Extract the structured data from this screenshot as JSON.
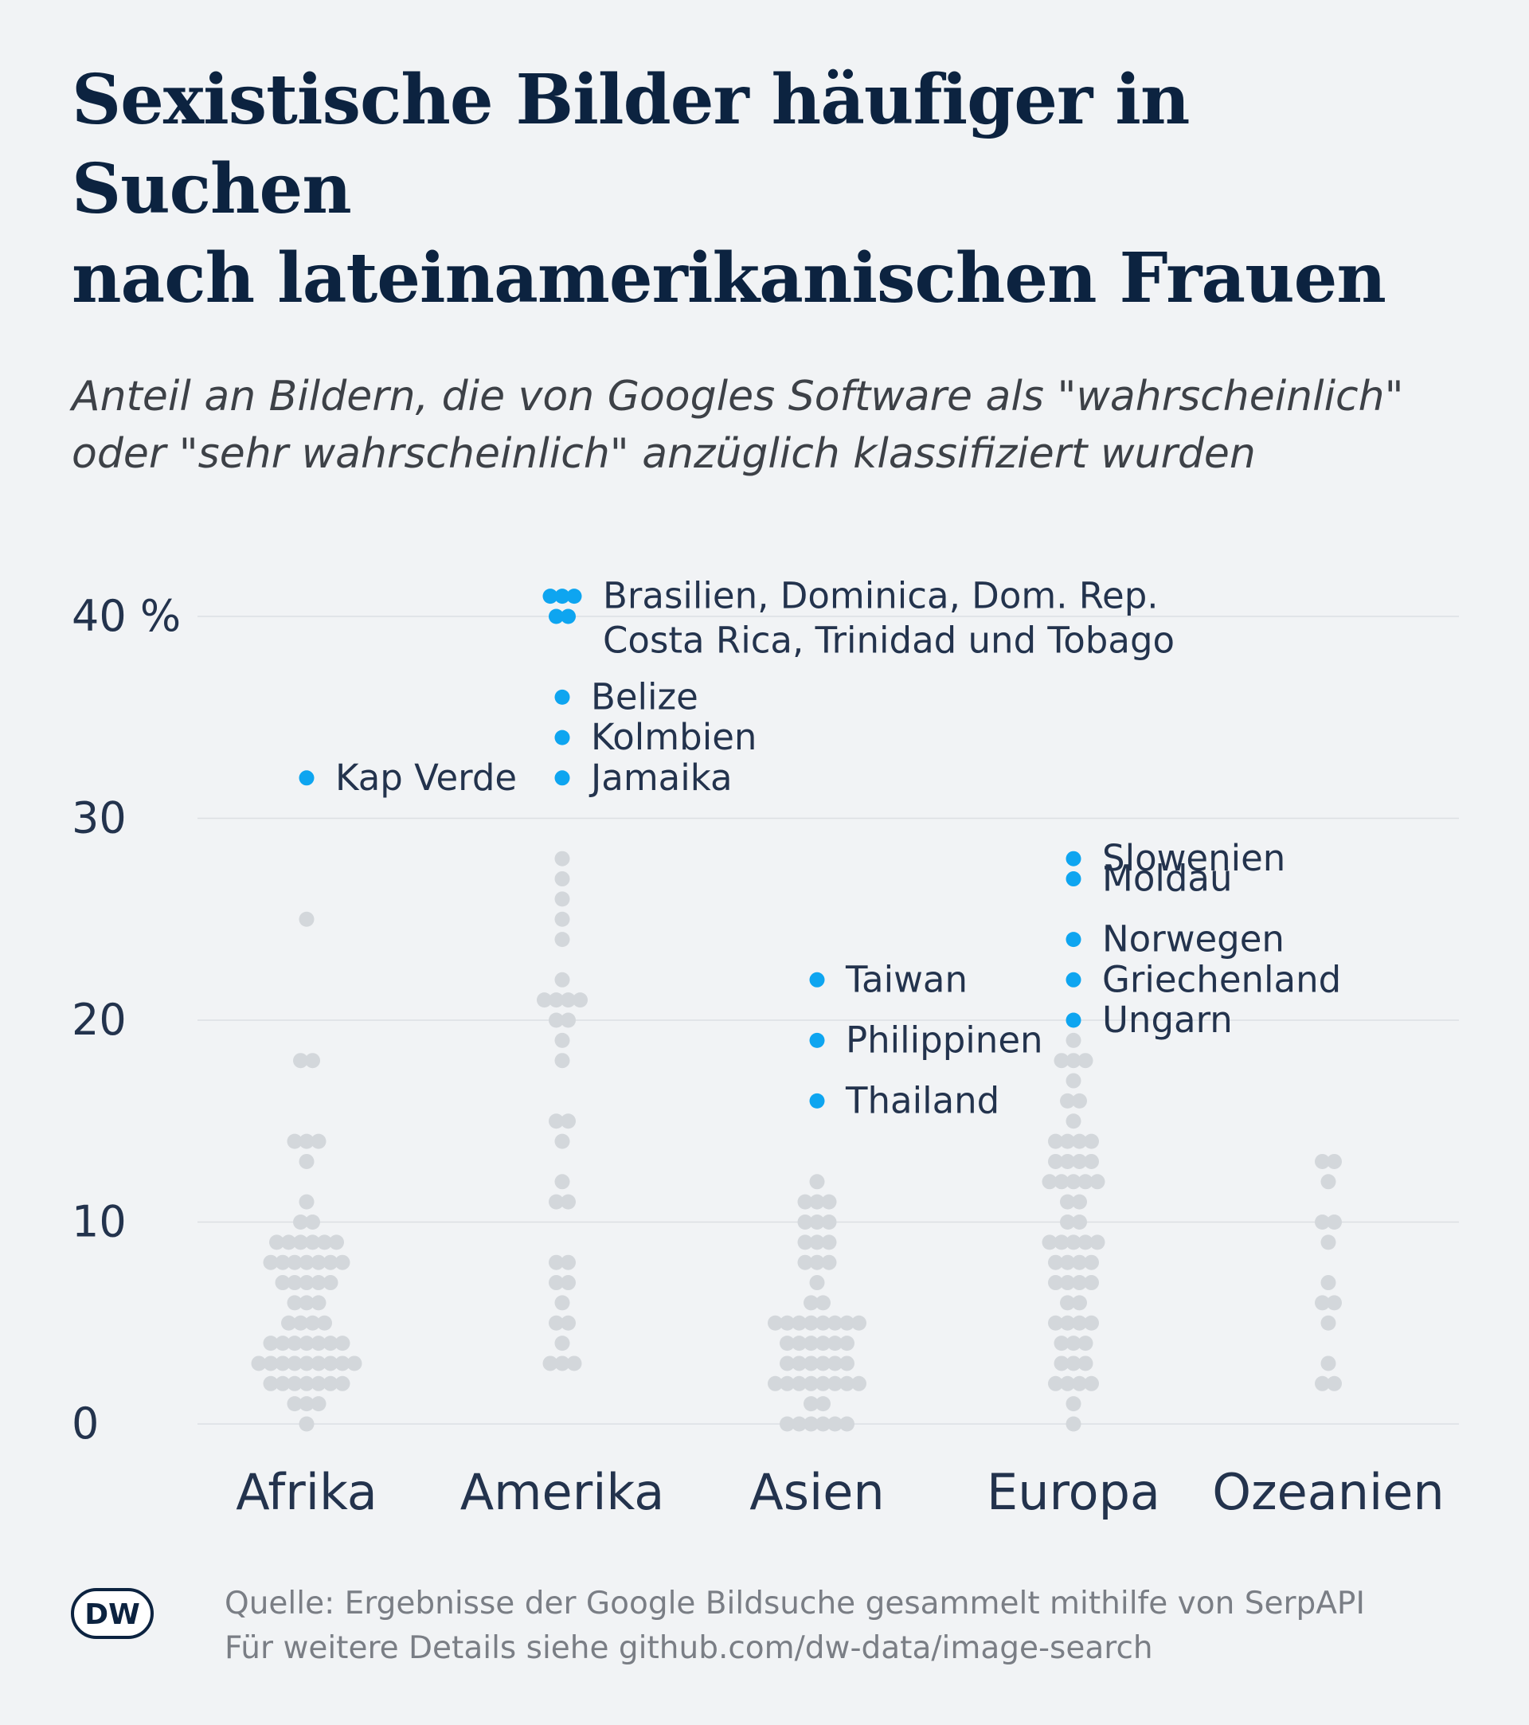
{
  "header": {
    "title_lines": [
      "Sexistische Bilder häufiger in Suchen",
      "nach lateinamerikanischen Frauen"
    ],
    "subtitle_lines": [
      "Anteil an Bildern, die von Googles Software als \"wahrscheinlich\"",
      "oder \"sehr wahrscheinlich\" anzüglich klassifiziert wurden"
    ]
  },
  "footer": {
    "source_lines": [
      "Quelle: Ergebnisse der Google Bildsuche gesammelt mithilfe von SerpAPI",
      "Für weitere Details siehe github.com/dw-data/image-search"
    ],
    "logo_text": "DW"
  },
  "colors": {
    "background": "#f1f3f5",
    "title": "#0c2340",
    "dot_default": "#d3d7db",
    "dot_highlight": "#0ea5f0",
    "gridline": "#dcdfe3",
    "axis_text": "#23334d",
    "footer_text": "#7a7e85"
  },
  "chart_data": {
    "type": "scatter",
    "subtype": "beeswarm",
    "title": "Sexistische Bilder häufiger in Suchen nach lateinamerikanischen Frauen",
    "ylabel": "",
    "ylim": [
      0,
      41
    ],
    "yticks": [
      {
        "value": 0,
        "label": "0"
      },
      {
        "value": 10,
        "label": "10"
      },
      {
        "value": 20,
        "label": "20"
      },
      {
        "value": 30,
        "label": "30"
      },
      {
        "value": 40,
        "label": "40 %"
      }
    ],
    "grid": true,
    "categories": [
      "Afrika",
      "Amerika",
      "Asien",
      "Europa",
      "Ozeanien"
    ],
    "series": [
      {
        "category": "Afrika",
        "values": [
          0,
          1,
          1,
          1,
          2,
          2,
          2,
          2,
          2,
          2,
          2,
          3,
          3,
          3,
          3,
          3,
          3,
          3,
          3,
          3,
          4,
          4,
          4,
          4,
          4,
          4,
          4,
          5,
          5,
          5,
          5,
          6,
          6,
          6,
          7,
          7,
          7,
          7,
          7,
          8,
          8,
          8,
          8,
          8,
          8,
          8,
          9,
          9,
          9,
          9,
          9,
          9,
          10,
          10,
          11,
          13,
          14,
          14,
          14,
          18,
          18,
          25
        ],
        "highlights": [
          {
            "value": 32,
            "labels": [
              "Kap Verde"
            ]
          }
        ]
      },
      {
        "category": "Amerika",
        "values": [
          3,
          3,
          3,
          4,
          5,
          5,
          6,
          7,
          7,
          8,
          8,
          11,
          11,
          12,
          14,
          15,
          15,
          18,
          19,
          20,
          20,
          21,
          21,
          21,
          21,
          22,
          24,
          25,
          26,
          27,
          28
        ],
        "highlights": [
          {
            "value": 41,
            "count": 3,
            "labels": [
              "Brasilien, Dominica, Dom. Rep.",
              "Costa Rica, Trinidad und Tobago"
            ]
          },
          {
            "value": 40,
            "count": 2
          },
          {
            "value": 36,
            "labels": [
              "Belize"
            ]
          },
          {
            "value": 34,
            "labels": [
              "Kolmbien"
            ]
          },
          {
            "value": 32,
            "labels": [
              "Jamaika"
            ]
          }
        ]
      },
      {
        "category": "Asien",
        "values": [
          0,
          0,
          0,
          0,
          0,
          0,
          1,
          1,
          2,
          2,
          2,
          2,
          2,
          2,
          2,
          2,
          3,
          3,
          3,
          3,
          3,
          3,
          4,
          4,
          4,
          4,
          4,
          4,
          5,
          5,
          5,
          5,
          5,
          5,
          5,
          5,
          6,
          6,
          7,
          8,
          8,
          8,
          9,
          9,
          9,
          10,
          10,
          10,
          11,
          11,
          11,
          12
        ],
        "highlights": [
          {
            "value": 22,
            "labels": [
              "Taiwan"
            ]
          },
          {
            "value": 19,
            "labels": [
              "Philippinen"
            ]
          },
          {
            "value": 16,
            "labels": [
              "Thailand"
            ]
          }
        ]
      },
      {
        "category": "Europa",
        "values": [
          0,
          1,
          2,
          2,
          2,
          2,
          3,
          3,
          3,
          4,
          4,
          4,
          5,
          5,
          5,
          5,
          6,
          6,
          7,
          7,
          7,
          7,
          8,
          8,
          8,
          8,
          9,
          9,
          9,
          9,
          9,
          10,
          10,
          11,
          11,
          12,
          12,
          12,
          12,
          12,
          13,
          13,
          13,
          13,
          14,
          14,
          14,
          14,
          15,
          16,
          16,
          17,
          18,
          18,
          18,
          19
        ],
        "highlights": [
          {
            "value": 28,
            "labels": [
              "Slowenien"
            ]
          },
          {
            "value": 27,
            "labels": [
              "Moldau"
            ]
          },
          {
            "value": 24,
            "labels": [
              "Norwegen"
            ]
          },
          {
            "value": 22,
            "labels": [
              "Griechenland"
            ]
          },
          {
            "value": 20,
            "labels": [
              "Ungarn"
            ]
          }
        ]
      },
      {
        "category": "Ozeanien",
        "values": [
          2,
          2,
          3,
          5,
          6,
          6,
          7,
          9,
          10,
          10,
          12,
          13,
          13
        ],
        "highlights": []
      }
    ]
  }
}
